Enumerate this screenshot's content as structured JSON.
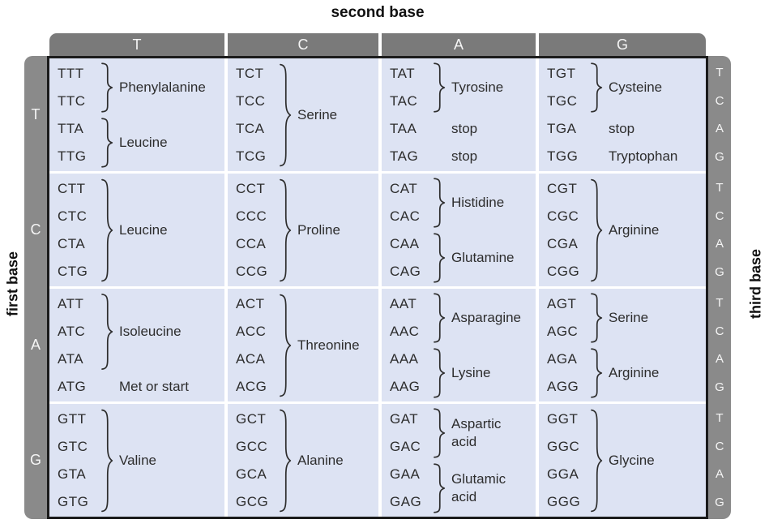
{
  "title_top": "second base",
  "label_left": "first base",
  "label_right": "third base",
  "second_bases": [
    "T",
    "C",
    "A",
    "G"
  ],
  "first_bases": [
    "T",
    "C",
    "A",
    "G"
  ],
  "third_bases": [
    "T",
    "C",
    "A",
    "G"
  ],
  "colors": {
    "header_bar": "#7a7a7a",
    "side_bar": "#8a8a8a",
    "cell_background": "#dde3f3",
    "table_border": "#1b1b1b",
    "text": "#2d2d2d",
    "bar_text": "#f5f5f5",
    "cell_gap": "#ffffff"
  },
  "cells": [
    {
      "row": "T",
      "col": "T",
      "groups": [
        {
          "codons": [
            "TTT",
            "TTC"
          ],
          "brace": true,
          "label": "Phenylalanine"
        },
        {
          "codons": [
            "TTA",
            "TTG"
          ],
          "brace": true,
          "label": "Leucine"
        }
      ]
    },
    {
      "row": "T",
      "col": "C",
      "groups": [
        {
          "codons": [
            "TCT",
            "TCC",
            "TCA",
            "TCG"
          ],
          "brace": true,
          "label": "Serine"
        }
      ]
    },
    {
      "row": "T",
      "col": "A",
      "groups": [
        {
          "codons": [
            "TAT",
            "TAC"
          ],
          "brace": true,
          "label": "Tyrosine"
        },
        {
          "codons": [
            "TAA"
          ],
          "brace": false,
          "label": "stop"
        },
        {
          "codons": [
            "TAG"
          ],
          "brace": false,
          "label": "stop"
        }
      ]
    },
    {
      "row": "T",
      "col": "G",
      "groups": [
        {
          "codons": [
            "TGT",
            "TGC"
          ],
          "brace": true,
          "label": "Cysteine"
        },
        {
          "codons": [
            "TGA"
          ],
          "brace": false,
          "label": "stop"
        },
        {
          "codons": [
            "TGG"
          ],
          "brace": false,
          "label": "Tryptophan"
        }
      ]
    },
    {
      "row": "C",
      "col": "T",
      "groups": [
        {
          "codons": [
            "CTT",
            "CTC",
            "CTA",
            "CTG"
          ],
          "brace": true,
          "label": "Leucine"
        }
      ]
    },
    {
      "row": "C",
      "col": "C",
      "groups": [
        {
          "codons": [
            "CCT",
            "CCC",
            "CCA",
            "CCG"
          ],
          "brace": true,
          "label": "Proline"
        }
      ]
    },
    {
      "row": "C",
      "col": "A",
      "groups": [
        {
          "codons": [
            "CAT",
            "CAC"
          ],
          "brace": true,
          "label": "Histidine"
        },
        {
          "codons": [
            "CAA",
            "CAG"
          ],
          "brace": true,
          "label": "Glutamine"
        }
      ]
    },
    {
      "row": "C",
      "col": "G",
      "groups": [
        {
          "codons": [
            "CGT",
            "CGC",
            "CGA",
            "CGG"
          ],
          "brace": true,
          "label": "Arginine"
        }
      ]
    },
    {
      "row": "A",
      "col": "T",
      "groups": [
        {
          "codons": [
            "ATT",
            "ATC",
            "ATA"
          ],
          "brace": true,
          "label": "Isoleucine"
        },
        {
          "codons": [
            "ATG"
          ],
          "brace": false,
          "label": "Met or start"
        }
      ]
    },
    {
      "row": "A",
      "col": "C",
      "groups": [
        {
          "codons": [
            "ACT",
            "ACC",
            "ACA",
            "ACG"
          ],
          "brace": true,
          "label": "Threonine"
        }
      ]
    },
    {
      "row": "A",
      "col": "A",
      "groups": [
        {
          "codons": [
            "AAT",
            "AAC"
          ],
          "brace": true,
          "label": "Asparagine"
        },
        {
          "codons": [
            "AAA",
            "AAG"
          ],
          "brace": true,
          "label": "Lysine"
        }
      ]
    },
    {
      "row": "A",
      "col": "G",
      "groups": [
        {
          "codons": [
            "AGT",
            "AGC"
          ],
          "brace": true,
          "label": "Serine"
        },
        {
          "codons": [
            "AGA",
            "AGG"
          ],
          "brace": true,
          "label": "Arginine"
        }
      ]
    },
    {
      "row": "G",
      "col": "T",
      "groups": [
        {
          "codons": [
            "GTT",
            "GTC",
            "GTA",
            "GTG"
          ],
          "brace": true,
          "label": "Valine"
        }
      ]
    },
    {
      "row": "G",
      "col": "C",
      "groups": [
        {
          "codons": [
            "GCT",
            "GCC",
            "GCA",
            "GCG"
          ],
          "brace": true,
          "label": "Alanine"
        }
      ]
    },
    {
      "row": "G",
      "col": "A",
      "groups": [
        {
          "codons": [
            "GAT",
            "GAC"
          ],
          "brace": true,
          "label": "Aspartic\nacid"
        },
        {
          "codons": [
            "GAA",
            "GAG"
          ],
          "brace": true,
          "label": "Glutamic\nacid"
        }
      ]
    },
    {
      "row": "G",
      "col": "G",
      "groups": [
        {
          "codons": [
            "GGT",
            "GGC",
            "GGA",
            "GGG"
          ],
          "brace": true,
          "label": "Glycine"
        }
      ]
    }
  ]
}
